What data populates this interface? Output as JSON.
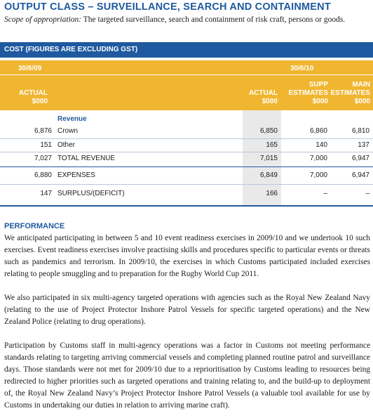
{
  "title": "OUTPUT CLASS – SURVEILLANCE, SEARCH AND CONTAINMENT",
  "scope": {
    "label": "Scope of appropriation:",
    "text": " The targeted surveillance, search and containment of risk craft, persons or goods."
  },
  "cost_table": {
    "heading": "COST (FIGURES ARE EXCLUDING GST)",
    "year_left": "30/6/09",
    "year_right": "30/6/10",
    "columns": {
      "actual_2009": "ACTUAL\n$000",
      "actual_2010": "ACTUAL\n$000",
      "supp_estimates": "SUPP\nESTIMATES\n$000",
      "main_estimates": "MAIN\nESTIMATES\n$000"
    },
    "revenue_label": "Revenue",
    "rows": [
      {
        "prev": "6,876",
        "label": "Crown",
        "actual": "6,850",
        "supp": "6,860",
        "main": "6,810"
      },
      {
        "prev": "151",
        "label": "Other",
        "actual": "165",
        "supp": "140",
        "main": "137"
      },
      {
        "prev": "7,027",
        "label": "TOTAL REVENUE",
        "actual": "7,015",
        "supp": "7,000",
        "main": "6,947"
      },
      {
        "prev": "6,880",
        "label": "EXPENSES",
        "actual": "6,849",
        "supp": "7,000",
        "main": "6,947"
      },
      {
        "prev": "147",
        "label": "SURPLUS/(DEFICIT)",
        "actual": "166",
        "supp": "–",
        "main": "–"
      }
    ]
  },
  "performance": {
    "heading": "PERFORMANCE",
    "paragraphs": [
      "We anticipated participating in between 5 and 10 event readiness exercises in 2009/10 and we undertook 10 such exercises. Event readiness exercises involve practising skills and procedures specific to particular events or threats such as pandemics and terrorism. In 2009/10, the exercises in which Customs participated included exercises relating to people smuggling and to preparation for the Rugby World Cup 2011.",
      "We also participated in six multi-agency targeted operations with agencies such as the Royal New Zealand Navy (relating to the use of Project Protector Inshore Patrol Vessels for specific targeted operations) and the New Zealand Police (relating to drug operations).",
      "Participation by Customs staff in multi-agency operations was a factor in Customs not meeting performance standards relating to targeting arriving commercial vessels and completing planned routine patrol and surveillance days. Those standards were not met for 2009/10 due to a reprioritisation by Customs leading to resources being redirected to higher priorities such as targeted operations and training relating to, and the build-up to deployment of, the Royal New Zealand Navy’s Project Protector Inshore Patrol Vessels (a valuable tool available for use by Customs in undertaking our duties in relation to arriving marine craft)."
    ]
  }
}
